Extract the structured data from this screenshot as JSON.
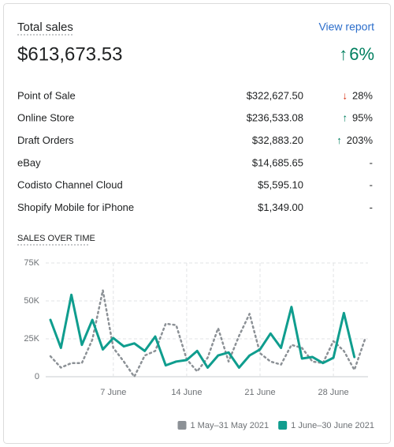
{
  "header": {
    "title": "Total sales",
    "link": "View report",
    "total": "$613,673.53",
    "change": "6%",
    "direction": "up"
  },
  "rows": [
    {
      "name": "Point of Sale",
      "amount": "$322,627.50",
      "change": "28%",
      "direction": "down"
    },
    {
      "name": "Online Store",
      "amount": "$236,533.08",
      "change": "95%",
      "direction": "up"
    },
    {
      "name": "Draft Orders",
      "amount": "$32,883.20",
      "change": "203%",
      "direction": "up"
    },
    {
      "name": "eBay",
      "amount": "$14,685.65",
      "change": "-",
      "direction": "none"
    },
    {
      "name": "Codisto Channel Cloud",
      "amount": "$5,595.10",
      "change": "-",
      "direction": "none"
    },
    {
      "name": "Shopify Mobile for iPhone",
      "amount": "$1,349.00",
      "change": "-",
      "direction": "none"
    }
  ],
  "chart_data": {
    "type": "line",
    "title": "SALES OVER TIME",
    "x": [
      1,
      2,
      3,
      4,
      5,
      6,
      7,
      8,
      9,
      10,
      11,
      12,
      13,
      14,
      15,
      16,
      17,
      18,
      19,
      20,
      21,
      22,
      23,
      24,
      25,
      26,
      27,
      28,
      29,
      30,
      31
    ],
    "xlim": [
      1,
      31
    ],
    "xticks": [
      {
        "value": 7,
        "label": "7 June"
      },
      {
        "value": 14,
        "label": "14 June"
      },
      {
        "value": 21,
        "label": "21 June"
      },
      {
        "value": 28,
        "label": "28 June"
      }
    ],
    "ylim": [
      0,
      75000
    ],
    "yticks": [
      0,
      {
        "value": 25000,
        "label": "25K"
      },
      {
        "value": 50000,
        "label": "50K"
      },
      {
        "value": 75000,
        "label": "75K"
      }
    ],
    "grid": true,
    "series": [
      {
        "name": "1 May–31 May 2021",
        "color": "#8c9196",
        "dash": true,
        "values": [
          13500,
          6000,
          9000,
          9000,
          24500,
          57000,
          19000,
          10000,
          0,
          14000,
          17000,
          35000,
          34000,
          11500,
          3500,
          12500,
          32000,
          10000,
          27000,
          41500,
          15500,
          10000,
          8000,
          21000,
          19000,
          10000,
          9000,
          23500,
          17000,
          4500,
          24500
        ]
      },
      {
        "name": "1 June–30 June 2021",
        "color": "#0f9d8e",
        "dash": false,
        "values": [
          37500,
          19000,
          54000,
          21000,
          37500,
          18000,
          25500,
          20000,
          22000,
          17000,
          26500,
          7500,
          10000,
          11000,
          17000,
          6000,
          14000,
          16000,
          6000,
          14000,
          18000,
          28500,
          19000,
          46000,
          12000,
          13000,
          9000,
          12500,
          42000,
          13000,
          null
        ]
      }
    ]
  }
}
